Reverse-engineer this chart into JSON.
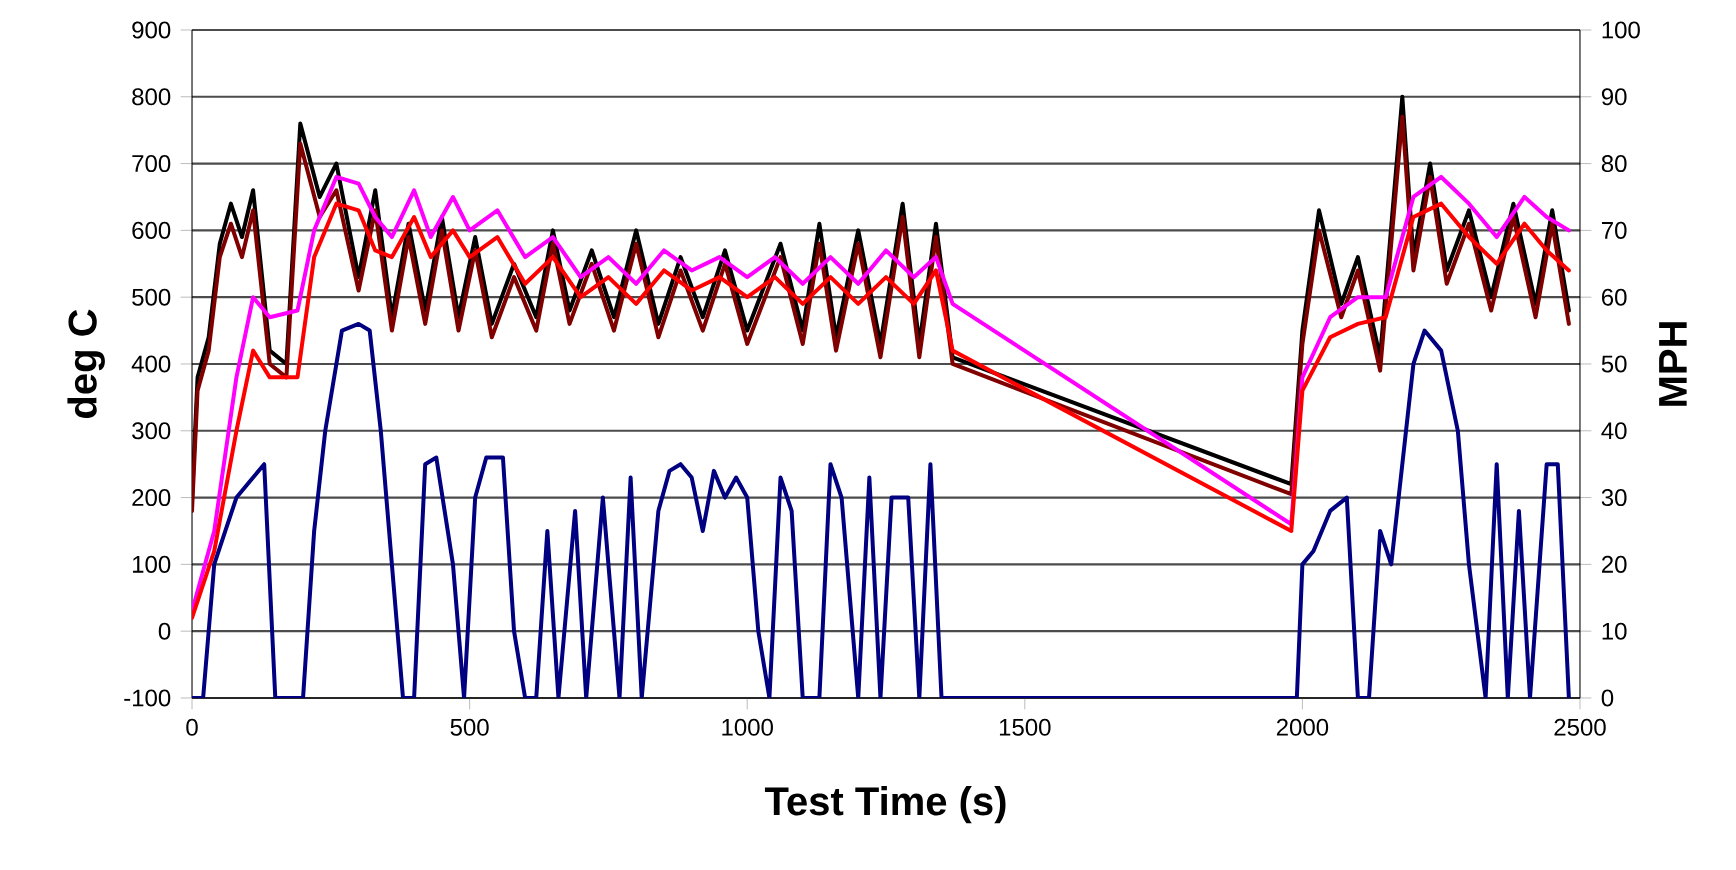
{
  "chart_data": {
    "type": "line",
    "xlabel": "Test Time (s)",
    "ylabel": "deg C",
    "y2label": "MPH",
    "xlim": [
      0,
      2500
    ],
    "xticks": [
      0,
      500,
      1000,
      1500,
      2000,
      2500
    ],
    "ylim": [
      -100,
      900
    ],
    "yticks": [
      -100,
      0,
      100,
      200,
      300,
      400,
      500,
      600,
      700,
      800,
      900
    ],
    "y2lim": [
      0,
      100
    ],
    "y2ticks": [
      0,
      10,
      20,
      30,
      40,
      50,
      60,
      70,
      80,
      90,
      100
    ],
    "grid": "y",
    "legend": false,
    "marker": "none",
    "line_style": "solid",
    "series": [
      {
        "color": "#000000",
        "x": [
          0,
          10,
          30,
          50,
          70,
          90,
          110,
          140,
          170,
          195,
          230,
          260,
          300,
          330,
          360,
          390,
          420,
          450,
          480,
          510,
          540,
          580,
          620,
          650,
          680,
          720,
          760,
          800,
          840,
          880,
          920,
          960,
          1000,
          1060,
          1100,
          1130,
          1160,
          1200,
          1240,
          1280,
          1310,
          1340,
          1370,
          1980,
          2000,
          2030,
          2070,
          2100,
          2140,
          2180,
          2200,
          2230,
          2260,
          2300,
          2340,
          2380,
          2420,
          2450,
          2480
        ],
        "values": [
          200,
          380,
          440,
          580,
          640,
          590,
          660,
          420,
          400,
          760,
          650,
          700,
          530,
          660,
          470,
          610,
          480,
          620,
          470,
          590,
          460,
          550,
          470,
          600,
          480,
          570,
          470,
          600,
          460,
          560,
          470,
          570,
          450,
          580,
          450,
          610,
          440,
          600,
          430,
          640,
          430,
          610,
          410,
          220,
          450,
          630,
          490,
          560,
          410,
          800,
          560,
          700,
          540,
          630,
          500,
          640,
          490,
          630,
          480
        ]
      },
      {
        "color": "#800000",
        "x": [
          0,
          10,
          30,
          50,
          70,
          90,
          110,
          140,
          170,
          195,
          230,
          260,
          300,
          330,
          360,
          390,
          420,
          450,
          480,
          510,
          540,
          580,
          620,
          650,
          680,
          720,
          760,
          800,
          840,
          880,
          920,
          960,
          1000,
          1060,
          1100,
          1130,
          1160,
          1200,
          1240,
          1280,
          1310,
          1340,
          1370,
          1980,
          2000,
          2030,
          2070,
          2100,
          2140,
          2180,
          2200,
          2230,
          2260,
          2300,
          2340,
          2380,
          2420,
          2450,
          2480
        ],
        "values": [
          180,
          360,
          420,
          560,
          610,
          560,
          630,
          400,
          380,
          730,
          620,
          660,
          510,
          630,
          450,
          590,
          460,
          600,
          450,
          570,
          440,
          530,
          450,
          580,
          460,
          550,
          450,
          580,
          440,
          540,
          450,
          550,
          430,
          560,
          430,
          580,
          420,
          580,
          410,
          620,
          410,
          590,
          400,
          205,
          430,
          600,
          470,
          540,
          390,
          770,
          540,
          680,
          520,
          610,
          480,
          620,
          470,
          610,
          460
        ]
      },
      {
        "color": "#ff00ff",
        "x": [
          0,
          40,
          80,
          110,
          140,
          190,
          220,
          260,
          300,
          330,
          360,
          400,
          430,
          470,
          500,
          550,
          600,
          650,
          700,
          750,
          800,
          850,
          900,
          950,
          1000,
          1050,
          1100,
          1150,
          1200,
          1250,
          1300,
          1340,
          1370,
          1980,
          2000,
          2050,
          2100,
          2150,
          2200,
          2250,
          2300,
          2350,
          2400,
          2440,
          2480
        ],
        "values": [
          30,
          150,
          380,
          500,
          470,
          480,
          600,
          680,
          670,
          620,
          590,
          660,
          590,
          650,
          600,
          630,
          560,
          590,
          530,
          560,
          520,
          570,
          540,
          560,
          530,
          560,
          520,
          560,
          520,
          570,
          530,
          560,
          490,
          160,
          380,
          470,
          500,
          500,
          650,
          680,
          640,
          590,
          650,
          620,
          600
        ]
      },
      {
        "color": "#ff0000",
        "x": [
          0,
          40,
          80,
          110,
          140,
          190,
          220,
          260,
          300,
          330,
          360,
          400,
          430,
          470,
          500,
          550,
          600,
          650,
          700,
          750,
          800,
          850,
          900,
          950,
          1000,
          1050,
          1100,
          1150,
          1200,
          1250,
          1300,
          1340,
          1370,
          1980,
          2000,
          2050,
          2100,
          2150,
          2200,
          2250,
          2300,
          2350,
          2400,
          2440,
          2480
        ],
        "values": [
          20,
          120,
          300,
          420,
          380,
          380,
          560,
          640,
          630,
          570,
          560,
          620,
          560,
          600,
          560,
          590,
          520,
          560,
          500,
          530,
          490,
          540,
          510,
          530,
          500,
          530,
          490,
          530,
          490,
          530,
          490,
          540,
          420,
          150,
          360,
          440,
          460,
          470,
          620,
          640,
          590,
          550,
          610,
          570,
          540
        ]
      },
      {
        "color": "#000080",
        "axis": "y2",
        "x": [
          0,
          20,
          40,
          60,
          80,
          110,
          130,
          150,
          200,
          220,
          240,
          270,
          300,
          320,
          340,
          360,
          380,
          400,
          420,
          440,
          470,
          490,
          510,
          530,
          560,
          580,
          600,
          620,
          640,
          660,
          690,
          710,
          740,
          770,
          790,
          810,
          840,
          860,
          880,
          900,
          920,
          940,
          960,
          980,
          1000,
          1020,
          1040,
          1060,
          1080,
          1100,
          1130,
          1150,
          1170,
          1200,
          1220,
          1240,
          1260,
          1290,
          1310,
          1330,
          1350,
          1380,
          1970,
          1990,
          2000,
          2020,
          2050,
          2080,
          2100,
          2120,
          2140,
          2160,
          2200,
          2220,
          2250,
          2280,
          2300,
          2330,
          2350,
          2370,
          2390,
          2410,
          2440,
          2460,
          2480
        ],
        "values": [
          0,
          0,
          20,
          25,
          30,
          33,
          35,
          0,
          0,
          25,
          40,
          55,
          56,
          55,
          40,
          20,
          0,
          0,
          35,
          36,
          20,
          0,
          30,
          36,
          36,
          10,
          0,
          0,
          25,
          0,
          28,
          0,
          30,
          0,
          33,
          0,
          28,
          34,
          35,
          33,
          25,
          34,
          30,
          33,
          30,
          10,
          0,
          33,
          28,
          0,
          0,
          35,
          30,
          0,
          33,
          0,
          30,
          30,
          0,
          35,
          0,
          0,
          0,
          0,
          20,
          22,
          28,
          30,
          0,
          0,
          25,
          20,
          50,
          55,
          52,
          40,
          20,
          0,
          35,
          0,
          28,
          0,
          35,
          35,
          0
        ]
      }
    ]
  }
}
